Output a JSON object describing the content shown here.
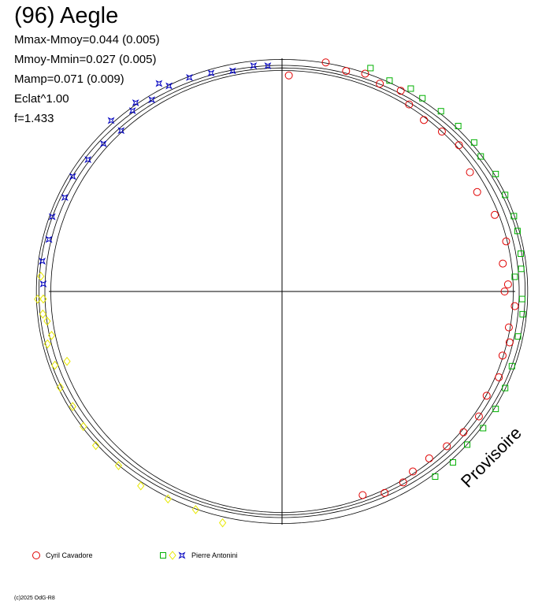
{
  "title": "(96) Aegle",
  "stats": [
    "Mmax-Mmoy=0.044 (0.005)",
    "Mmoy-Mmin=0.027 (0.005)",
    "Mamp=0.071 (0.009)",
    "Eclat^1.00",
    "f=1.433"
  ],
  "stamp": "Provisoire",
  "copyright": "(c)2025 OdG-R8",
  "legend": [
    {
      "label": "Cyril Cavadore",
      "markers": [
        "circle"
      ],
      "colors": [
        "#e00000"
      ]
    },
    {
      "label": "Pierre Antonini",
      "markers": [
        "square",
        "diamond",
        "star"
      ],
      "colors": [
        "#00b000",
        "#e8e800",
        "#0000c0"
      ]
    }
  ],
  "chart_data": {
    "type": "polar-lightcurve",
    "period_h": 1.433,
    "amplitude_mag": 0.071,
    "series": [
      {
        "name": "Cyril Cavadore",
        "marker": "circle",
        "color": "#e00000",
        "points": [
          [
            0.005,
            0.044
          ],
          [
            0.03,
            0.02
          ],
          [
            0.045,
            0.025
          ],
          [
            0.058,
            0.02
          ],
          [
            0.07,
            0.025
          ],
          [
            0.085,
            0.02
          ],
          [
            0.095,
            0.03
          ],
          [
            0.11,
            0.035
          ],
          [
            0.125,
            0.03
          ],
          [
            0.14,
            0.025
          ],
          [
            0.16,
            0.035
          ],
          [
            0.175,
            0.04
          ],
          [
            0.195,
            0.03
          ],
          [
            0.215,
            0.025
          ],
          [
            0.23,
            0.035
          ],
          [
            0.245,
            0.03
          ],
          [
            0.25,
            0.035
          ],
          [
            0.26,
            0.02
          ],
          [
            0.275,
            0.025
          ],
          [
            0.285,
            0.02
          ],
          [
            0.295,
            0.025
          ],
          [
            0.31,
            0.02
          ],
          [
            0.325,
            0.025
          ],
          [
            0.34,
            0.02
          ],
          [
            0.355,
            0.025
          ],
          [
            0.37,
            0.03
          ],
          [
            0.385,
            0.035
          ],
          [
            0.4,
            0.035
          ],
          [
            0.41,
            0.03
          ],
          [
            0.425,
            0.03
          ],
          [
            0.44,
            0.04
          ]
        ]
      },
      {
        "name": "Pierre Antonini",
        "marker": "square",
        "color": "#00b000",
        "points": [
          [
            0.06,
            0.01
          ],
          [
            0.075,
            0.015
          ],
          [
            0.09,
            0.01
          ],
          [
            0.1,
            0.012
          ],
          [
            0.115,
            0.01
          ],
          [
            0.13,
            0.008
          ],
          [
            0.145,
            0.006
          ],
          [
            0.155,
            0.01
          ],
          [
            0.17,
            0.005
          ],
          [
            0.185,
            0.006
          ],
          [
            0.2,
            0.005
          ],
          [
            0.21,
            0.006
          ],
          [
            0.225,
            0.008
          ],
          [
            0.235,
            0.01
          ],
          [
            0.24,
            0.02
          ],
          [
            0.255,
            0.01
          ],
          [
            0.265,
            0.008
          ],
          [
            0.28,
            0.01
          ],
          [
            0.3,
            0.008
          ],
          [
            0.315,
            0.006
          ],
          [
            0.33,
            0.005
          ],
          [
            0.345,
            0.006
          ],
          [
            0.36,
            0.01
          ],
          [
            0.375,
            0.008
          ],
          [
            0.39,
            0.01
          ]
        ]
      },
      {
        "name": "Pierre Antonini",
        "marker": "diamond",
        "color": "#e8e800",
        "points": [
          [
            0.54,
            0.012
          ],
          [
            0.56,
            0.018
          ],
          [
            0.58,
            0.015
          ],
          [
            0.6,
            0.01
          ],
          [
            0.62,
            0.012
          ],
          [
            0.64,
            0.008
          ],
          [
            0.655,
            0.01
          ],
          [
            0.67,
            0.012
          ],
          [
            0.685,
            0.008
          ],
          [
            0.7,
            0.012
          ],
          [
            0.715,
            0.01
          ],
          [
            0.73,
            0.015
          ],
          [
            0.745,
            0.012
          ],
          [
            0.76,
            0.008
          ],
          [
            0.7,
            0.03
          ],
          [
            0.72,
            0.018
          ],
          [
            0.735,
            0.01
          ],
          [
            0.745,
            0.004
          ]
        ]
      },
      {
        "name": "Pierre Antonini",
        "marker": "star",
        "color": "#0000c0",
        "points": [
          [
            0.755,
            0.012
          ],
          [
            0.77,
            0.008
          ],
          [
            0.785,
            0.012
          ],
          [
            0.8,
            0.008
          ],
          [
            0.815,
            0.015
          ],
          [
            0.83,
            0.012
          ],
          [
            0.845,
            0.018
          ],
          [
            0.86,
            0.022
          ],
          [
            0.875,
            0.028
          ],
          [
            0.89,
            0.018
          ],
          [
            0.905,
            0.022
          ],
          [
            0.92,
            0.018
          ],
          [
            0.935,
            0.02
          ],
          [
            0.95,
            0.025
          ],
          [
            0.965,
            0.03
          ],
          [
            0.98,
            0.028
          ],
          [
            0.99,
            0.03
          ],
          [
            0.875,
            0.008
          ],
          [
            0.895,
            0.012
          ],
          [
            0.915,
            0.008
          ]
        ]
      }
    ]
  }
}
